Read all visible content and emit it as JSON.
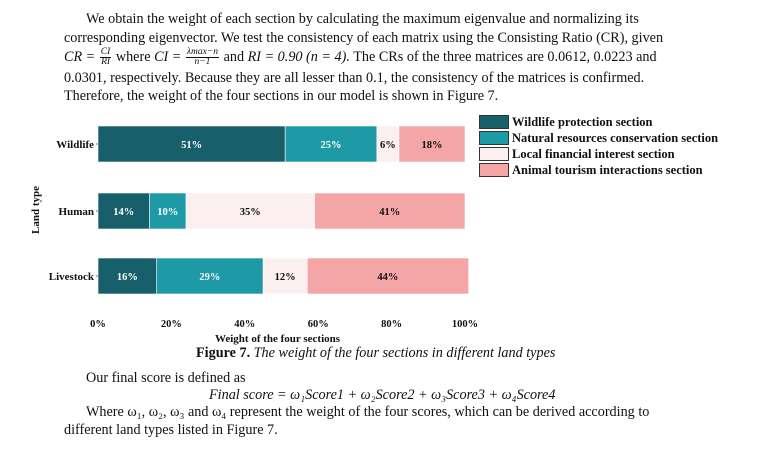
{
  "paragraph": {
    "line1": "We obtain the weight of each section by calculating the maximum eigenvalue and normalizing its",
    "line2": "corresponding eigenvector. We test the consistency of each matrix using the Consisting Ratio (CR), given",
    "line3_cr": "CR =",
    "line3_cr_num": "CI",
    "line3_cr_den": "RI",
    "line3_where": "where",
    "line3_ci": "CI =",
    "line3_ci_num": "λmax−n",
    "line3_ci_den": "n−1",
    "line3_and": "and",
    "line3_ri": "RI = 0.90 (n = 4).",
    "line3_rest": "The CRs of the three matrices are 0.0612, 0.0223 and",
    "line4": "0.0301, respectively. Because they are all lesser than 0.1, the consistency of the matrices is confirmed.",
    "line5": "Therefore, the weight of the four sections in our model is shown in Figure 7."
  },
  "chart_data": {
    "type": "bar",
    "orientation": "horizontal",
    "stacked": true,
    "categories": [
      "Wildlife",
      "Human",
      "Livestock"
    ],
    "series": [
      {
        "name": "Wildlife protection section",
        "values": [
          51,
          14,
          16
        ],
        "labels": [
          "51%",
          "14%",
          "16%"
        ],
        "color": "#165f6b"
      },
      {
        "name": "Natural resources conservation section",
        "values": [
          25,
          10,
          29
        ],
        "labels": [
          "25%",
          "10%",
          "29%"
        ],
        "color": "#1e9aa6"
      },
      {
        "name": "Local financial interest section",
        "values": [
          6,
          35,
          12
        ],
        "labels": [
          "6%",
          "35%",
          "12%"
        ],
        "color": "#fcefef"
      },
      {
        "name": "Animal tourism interactions section",
        "values": [
          18,
          41,
          44
        ],
        "labels": [
          "18%",
          "41%",
          "44%"
        ],
        "color": "#f4a6a6"
      }
    ],
    "xlabel": "Weight of the four sections",
    "ylabel": "Land type",
    "xlim": [
      0,
      100
    ],
    "xticks": [
      "0%",
      "20%",
      "40%",
      "60%",
      "80%",
      "100%"
    ],
    "grid": false,
    "legend": "right"
  },
  "caption": {
    "label": "Figure 7.",
    "text": "The weight of the four sections in different land types"
  },
  "after": {
    "line1": "Our final score is defined as",
    "formula": "Final score = ω₁Score1 + ω₂Score2 + ω₃Score3 + ω₄Score4",
    "line3": "Where ω₁, ω₂, ω₃ and ω₄ represent the weight of the four scores, which can be derived according to",
    "line4": "different land types listed in Figure 7."
  }
}
